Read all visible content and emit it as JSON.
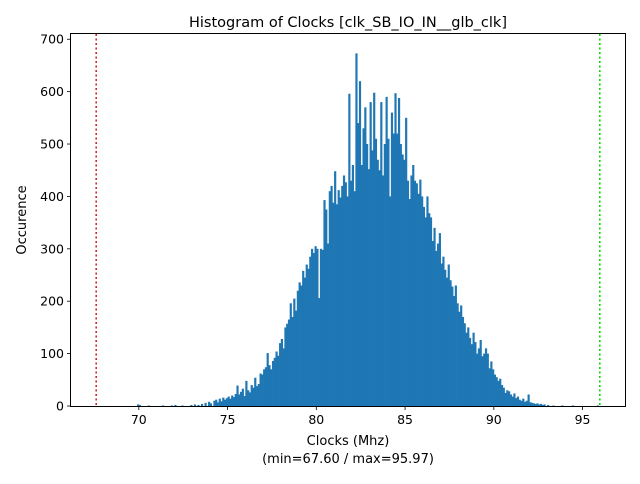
{
  "chart_data": {
    "type": "bar",
    "title": "Histogram of Clocks [clk_SB_IO_IN__glb_clk]",
    "xlabel": "Clocks (Mhz)",
    "xlabel_sub": "(min=67.60 / max=95.97)",
    "ylabel": "Occurence",
    "xlim": [
      66.18,
      97.39
    ],
    "ylim": [
      0,
      710
    ],
    "xticks": [
      70,
      75,
      80,
      85,
      90,
      95
    ],
    "yticks": [
      0,
      100,
      200,
      300,
      400,
      500,
      600,
      700
    ],
    "bar_color": "#1f77b4",
    "grid": false,
    "legend": "none",
    "bins": {
      "start": 67.6,
      "width": 0.1,
      "counts": [
        1,
        0,
        0,
        0,
        0,
        0,
        0,
        0,
        0,
        0,
        0,
        0,
        0,
        0,
        0,
        0,
        0,
        0,
        0,
        0,
        0,
        0,
        0,
        0,
        0,
        0,
        0,
        0,
        0,
        0,
        0,
        0,
        0,
        1,
        0,
        0,
        0,
        0,
        0,
        0,
        0,
        0,
        0,
        0,
        0,
        0,
        0,
        0,
        0,
        0,
        0,
        0,
        0,
        0,
        0,
        0,
        0,
        0,
        0,
        0,
        0,
        0,
        0,
        0,
        0,
        0,
        0,
        0,
        0,
        0,
        0,
        0,
        0,
        0,
        0,
        0,
        0,
        0,
        0,
        0,
        0,
        0,
        0,
        0,
        0,
        0,
        0,
        0,
        0,
        0,
        0,
        0,
        0,
        0,
        0,
        0,
        0,
        0,
        0,
        0,
        0,
        0,
        0,
        0,
        0,
        0,
        0,
        0,
        0,
        0,
        0,
        0,
        0,
        0,
        0,
        0,
        0,
        0,
        0,
        0,
        0,
        0,
        0,
        0,
        0,
        0,
        0,
        0,
        0,
        0,
        0,
        0,
        0,
        0,
        0,
        0,
        0,
        0,
        0,
        0,
        0,
        0,
        0,
        0,
        0,
        0,
        0,
        0,
        0,
        0,
        0,
        0,
        0,
        0,
        0,
        0,
        0,
        0,
        0,
        0,
        0,
        0,
        0,
        0,
        0,
        0,
        0,
        0,
        0,
        0,
        0,
        0,
        0,
        0,
        0,
        0,
        0,
        0,
        0,
        0,
        0,
        0,
        0,
        0,
        0,
        0,
        0,
        0,
        0,
        0,
        0,
        0,
        0,
        0,
        0,
        0,
        0,
        0,
        0,
        0,
        0,
        0,
        0,
        0,
        0,
        0,
        0,
        0,
        0,
        0,
        0,
        0,
        0,
        0,
        0,
        0,
        0,
        0,
        0,
        0,
        0,
        0,
        0,
        0,
        0,
        0,
        0,
        0,
        0,
        0,
        0,
        0,
        0,
        0,
        0,
        0,
        0,
        0,
        0,
        0,
        0,
        0,
        0,
        0,
        0,
        0,
        0,
        0,
        0,
        0,
        0,
        0,
        0,
        0,
        0,
        0,
        0,
        0,
        0,
        0,
        0,
        0,
        0,
        0,
        0,
        0,
        0,
        0,
        0,
        0,
        0,
        0,
        0,
        1
      ]
    },
    "bins_detail": [
      {
        "x": 69.9,
        "v": 3
      },
      {
        "x": 70.0,
        "v": 2
      },
      {
        "x": 70.5,
        "v": 1
      },
      {
        "x": 71.3,
        "v": 1
      },
      {
        "x": 71.8,
        "v": 1
      },
      {
        "x": 72.0,
        "v": 2
      },
      {
        "x": 72.4,
        "v": 1
      },
      {
        "x": 72.9,
        "v": 2
      },
      {
        "x": 73.1,
        "v": 3
      },
      {
        "x": 73.3,
        "v": 2
      },
      {
        "x": 73.5,
        "v": 4
      },
      {
        "x": 73.7,
        "v": 6
      },
      {
        "x": 73.9,
        "v": 8
      },
      {
        "x": 74.0,
        "v": 5
      },
      {
        "x": 74.2,
        "v": 10
      },
      {
        "x": 74.3,
        "v": 12
      },
      {
        "x": 74.4,
        "v": 7
      },
      {
        "x": 74.5,
        "v": 14
      },
      {
        "x": 74.6,
        "v": 9
      },
      {
        "x": 74.7,
        "v": 16
      },
      {
        "x": 74.8,
        "v": 12
      },
      {
        "x": 74.9,
        "v": 15
      },
      {
        "x": 75.0,
        "v": 18
      },
      {
        "x": 75.1,
        "v": 14
      },
      {
        "x": 75.2,
        "v": 20
      },
      {
        "x": 75.3,
        "v": 17
      },
      {
        "x": 75.4,
        "v": 23
      },
      {
        "x": 75.5,
        "v": 39
      },
      {
        "x": 75.6,
        "v": 22
      },
      {
        "x": 75.7,
        "v": 27
      },
      {
        "x": 75.8,
        "v": 33
      },
      {
        "x": 75.9,
        "v": 19
      },
      {
        "x": 76.0,
        "v": 48
      },
      {
        "x": 76.1,
        "v": 30
      },
      {
        "x": 76.2,
        "v": 26
      },
      {
        "x": 76.3,
        "v": 40
      },
      {
        "x": 76.4,
        "v": 35
      },
      {
        "x": 76.5,
        "v": 54
      },
      {
        "x": 76.6,
        "v": 38
      },
      {
        "x": 76.7,
        "v": 42
      },
      {
        "x": 76.8,
        "v": 62
      },
      {
        "x": 76.9,
        "v": 60
      },
      {
        "x": 77.0,
        "v": 70
      },
      {
        "x": 77.1,
        "v": 74
      },
      {
        "x": 77.2,
        "v": 101
      },
      {
        "x": 77.3,
        "v": 78
      },
      {
        "x": 77.4,
        "v": 70
      },
      {
        "x": 77.5,
        "v": 86
      },
      {
        "x": 77.6,
        "v": 92
      },
      {
        "x": 77.7,
        "v": 104
      },
      {
        "x": 77.8,
        "v": 96
      },
      {
        "x": 77.9,
        "v": 120
      },
      {
        "x": 78.0,
        "v": 128
      },
      {
        "x": 78.1,
        "v": 110
      },
      {
        "x": 78.2,
        "v": 150
      },
      {
        "x": 78.3,
        "v": 157
      },
      {
        "x": 78.4,
        "v": 165
      },
      {
        "x": 78.5,
        "v": 196
      },
      {
        "x": 78.6,
        "v": 170
      },
      {
        "x": 78.7,
        "v": 205
      },
      {
        "x": 78.8,
        "v": 182
      },
      {
        "x": 78.9,
        "v": 220
      },
      {
        "x": 79.0,
        "v": 236
      },
      {
        "x": 79.1,
        "v": 230
      },
      {
        "x": 79.2,
        "v": 258
      },
      {
        "x": 79.3,
        "v": 245
      },
      {
        "x": 79.4,
        "v": 270
      },
      {
        "x": 79.5,
        "v": 262
      },
      {
        "x": 79.6,
        "v": 285
      },
      {
        "x": 79.7,
        "v": 300
      },
      {
        "x": 79.8,
        "v": 292
      },
      {
        "x": 79.9,
        "v": 305
      },
      {
        "x": 80.0,
        "v": 300
      },
      {
        "x": 80.1,
        "v": 206
      },
      {
        "x": 80.2,
        "v": 300
      },
      {
        "x": 80.3,
        "v": 298
      },
      {
        "x": 80.4,
        "v": 393
      },
      {
        "x": 80.5,
        "v": 375
      },
      {
        "x": 80.6,
        "v": 310
      },
      {
        "x": 80.7,
        "v": 410
      },
      {
        "x": 80.8,
        "v": 420
      },
      {
        "x": 80.9,
        "v": 388
      },
      {
        "x": 81.0,
        "v": 448
      },
      {
        "x": 81.1,
        "v": 385
      },
      {
        "x": 81.2,
        "v": 412
      },
      {
        "x": 81.3,
        "v": 398
      },
      {
        "x": 81.4,
        "v": 420
      },
      {
        "x": 81.5,
        "v": 440
      },
      {
        "x": 81.6,
        "v": 427
      },
      {
        "x": 81.7,
        "v": 400
      },
      {
        "x": 81.8,
        "v": 596
      },
      {
        "x": 81.9,
        "v": 430
      },
      {
        "x": 82.0,
        "v": 460
      },
      {
        "x": 82.1,
        "v": 410
      },
      {
        "x": 82.2,
        "v": 673
      },
      {
        "x": 82.3,
        "v": 540
      },
      {
        "x": 82.4,
        "v": 620
      },
      {
        "x": 82.5,
        "v": 460
      },
      {
        "x": 82.6,
        "v": 530
      },
      {
        "x": 82.7,
        "v": 570
      },
      {
        "x": 82.8,
        "v": 500
      },
      {
        "x": 82.9,
        "v": 452
      },
      {
        "x": 83.0,
        "v": 580
      },
      {
        "x": 83.1,
        "v": 488
      },
      {
        "x": 83.2,
        "v": 598
      },
      {
        "x": 83.3,
        "v": 510
      },
      {
        "x": 83.4,
        "v": 470
      },
      {
        "x": 83.5,
        "v": 450
      },
      {
        "x": 83.6,
        "v": 580
      },
      {
        "x": 83.7,
        "v": 440
      },
      {
        "x": 83.8,
        "v": 500
      },
      {
        "x": 83.9,
        "v": 590
      },
      {
        "x": 84.0,
        "v": 510
      },
      {
        "x": 84.1,
        "v": 400
      },
      {
        "x": 84.2,
        "v": 560
      },
      {
        "x": 84.3,
        "v": 520
      },
      {
        "x": 84.4,
        "v": 597
      },
      {
        "x": 84.5,
        "v": 520
      },
      {
        "x": 84.6,
        "v": 588
      },
      {
        "x": 84.7,
        "v": 500
      },
      {
        "x": 84.8,
        "v": 480
      },
      {
        "x": 84.9,
        "v": 470
      },
      {
        "x": 85.0,
        "v": 550
      },
      {
        "x": 85.1,
        "v": 430
      },
      {
        "x": 85.2,
        "v": 395
      },
      {
        "x": 85.3,
        "v": 440
      },
      {
        "x": 85.4,
        "v": 460
      },
      {
        "x": 85.5,
        "v": 430
      },
      {
        "x": 85.6,
        "v": 425
      },
      {
        "x": 85.7,
        "v": 405
      },
      {
        "x": 85.8,
        "v": 432
      },
      {
        "x": 85.9,
        "v": 400
      },
      {
        "x": 86.0,
        "v": 380
      },
      {
        "x": 86.1,
        "v": 360
      },
      {
        "x": 86.2,
        "v": 400
      },
      {
        "x": 86.3,
        "v": 368
      },
      {
        "x": 86.4,
        "v": 360
      },
      {
        "x": 86.5,
        "v": 315
      },
      {
        "x": 86.6,
        "v": 340
      },
      {
        "x": 86.7,
        "v": 296
      },
      {
        "x": 86.8,
        "v": 310
      },
      {
        "x": 86.9,
        "v": 330
      },
      {
        "x": 87.0,
        "v": 272
      },
      {
        "x": 87.1,
        "v": 285
      },
      {
        "x": 87.2,
        "v": 260
      },
      {
        "x": 87.3,
        "v": 245
      },
      {
        "x": 87.4,
        "v": 270
      },
      {
        "x": 87.5,
        "v": 240
      },
      {
        "x": 87.6,
        "v": 228
      },
      {
        "x": 87.7,
        "v": 210
      },
      {
        "x": 87.8,
        "v": 230
      },
      {
        "x": 87.9,
        "v": 196
      },
      {
        "x": 88.0,
        "v": 180
      },
      {
        "x": 88.1,
        "v": 192
      },
      {
        "x": 88.2,
        "v": 170
      },
      {
        "x": 88.3,
        "v": 158
      },
      {
        "x": 88.4,
        "v": 140
      },
      {
        "x": 88.5,
        "v": 150
      },
      {
        "x": 88.6,
        "v": 130
      },
      {
        "x": 88.7,
        "v": 118
      },
      {
        "x": 88.8,
        "v": 140
      },
      {
        "x": 88.9,
        "v": 122
      },
      {
        "x": 89.0,
        "v": 100
      },
      {
        "x": 89.1,
        "v": 110
      },
      {
        "x": 89.2,
        "v": 126
      },
      {
        "x": 89.3,
        "v": 95
      },
      {
        "x": 89.4,
        "v": 100
      },
      {
        "x": 89.5,
        "v": 110
      },
      {
        "x": 89.6,
        "v": 100
      },
      {
        "x": 89.7,
        "v": 72
      },
      {
        "x": 89.8,
        "v": 85
      },
      {
        "x": 89.9,
        "v": 70
      },
      {
        "x": 90.0,
        "v": 60
      },
      {
        "x": 90.1,
        "v": 55
      },
      {
        "x": 90.2,
        "v": 48
      },
      {
        "x": 90.3,
        "v": 52
      },
      {
        "x": 90.4,
        "v": 40
      },
      {
        "x": 90.5,
        "v": 35
      },
      {
        "x": 90.6,
        "v": 25
      },
      {
        "x": 90.7,
        "v": 30
      },
      {
        "x": 90.8,
        "v": 28
      },
      {
        "x": 90.9,
        "v": 22
      },
      {
        "x": 91.0,
        "v": 18
      },
      {
        "x": 91.1,
        "v": 24
      },
      {
        "x": 91.2,
        "v": 15
      },
      {
        "x": 91.3,
        "v": 18
      },
      {
        "x": 91.4,
        "v": 12
      },
      {
        "x": 91.5,
        "v": 10
      },
      {
        "x": 91.6,
        "v": 14
      },
      {
        "x": 91.7,
        "v": 8
      },
      {
        "x": 91.8,
        "v": 10
      },
      {
        "x": 91.9,
        "v": 22
      },
      {
        "x": 92.0,
        "v": 7
      },
      {
        "x": 92.1,
        "v": 6
      },
      {
        "x": 92.2,
        "v": 5
      },
      {
        "x": 92.3,
        "v": 4
      },
      {
        "x": 92.4,
        "v": 5
      },
      {
        "x": 92.5,
        "v": 3
      },
      {
        "x": 92.6,
        "v": 4
      },
      {
        "x": 92.7,
        "v": 2
      },
      {
        "x": 92.8,
        "v": 3
      },
      {
        "x": 93.0,
        "v": 2
      },
      {
        "x": 93.3,
        "v": 1
      },
      {
        "x": 93.8,
        "v": 1
      },
      {
        "x": 94.4,
        "v": 1
      },
      {
        "x": 95.8,
        "v": 1
      }
    ],
    "vlines": [
      {
        "x": 67.6,
        "color": "#d62728",
        "style": "dotted"
      },
      {
        "x": 95.97,
        "color": "#00dd00",
        "style": "dotted"
      }
    ]
  }
}
